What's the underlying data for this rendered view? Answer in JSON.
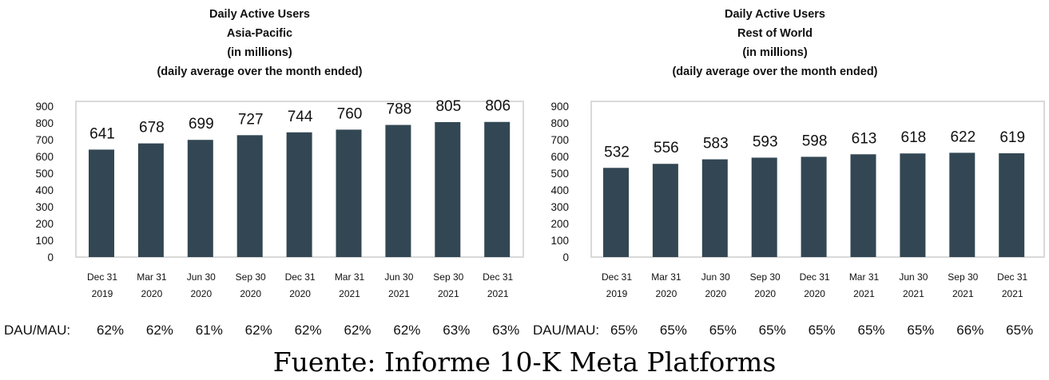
{
  "colors": {
    "bar": "#324753",
    "frame": "#d9d9d9",
    "text": "#111111"
  },
  "chart_data": [
    {
      "type": "bar",
      "title_lines": [
        "Daily Active Users",
        "Asia-Pacific",
        "(in millions)",
        "(daily average over the month ended)"
      ],
      "categories": [
        [
          "Dec 31",
          "2019"
        ],
        [
          "Mar 31",
          "2020"
        ],
        [
          "Jun 30",
          "2020"
        ],
        [
          "Sep 30",
          "2020"
        ],
        [
          "Dec 31",
          "2020"
        ],
        [
          "Mar 31",
          "2021"
        ],
        [
          "Jun 30",
          "2021"
        ],
        [
          "Sep 30",
          "2021"
        ],
        [
          "Dec 31",
          "2021"
        ]
      ],
      "values": [
        641,
        678,
        699,
        727,
        744,
        760,
        788,
        805,
        806
      ],
      "ylim": [
        0,
        900
      ],
      "yticks": [
        0,
        100,
        200,
        300,
        400,
        500,
        600,
        700,
        800,
        900
      ],
      "xlabel": "",
      "ylabel": "",
      "grid": false,
      "ratio_label": "DAU/MAU:",
      "ratios": [
        "62%",
        "62%",
        "61%",
        "62%",
        "62%",
        "62%",
        "62%",
        "63%",
        "63%"
      ]
    },
    {
      "type": "bar",
      "title_lines": [
        "Daily Active Users",
        "Rest of World",
        "(in millions)",
        "(daily average over the month ended)"
      ],
      "categories": [
        [
          "Dec 31",
          "2019"
        ],
        [
          "Mar 31",
          "2020"
        ],
        [
          "Jun 30",
          "2020"
        ],
        [
          "Sep 30",
          "2020"
        ],
        [
          "Dec 31",
          "2020"
        ],
        [
          "Mar 31",
          "2021"
        ],
        [
          "Jun 30",
          "2021"
        ],
        [
          "Sep 30",
          "2021"
        ],
        [
          "Dec 31",
          "2021"
        ]
      ],
      "values": [
        532,
        556,
        583,
        593,
        598,
        613,
        618,
        622,
        619
      ],
      "ylim": [
        0,
        900
      ],
      "yticks": [
        0,
        100,
        200,
        300,
        400,
        500,
        600,
        700,
        800,
        900
      ],
      "xlabel": "",
      "ylabel": "",
      "grid": false,
      "ratio_label": "DAU/MAU:",
      "ratios": [
        "65%",
        "65%",
        "65%",
        "65%",
        "65%",
        "65%",
        "65%",
        "66%",
        "65%"
      ]
    }
  ],
  "source_text": "Fuente: Informe 10-K Meta Platforms"
}
